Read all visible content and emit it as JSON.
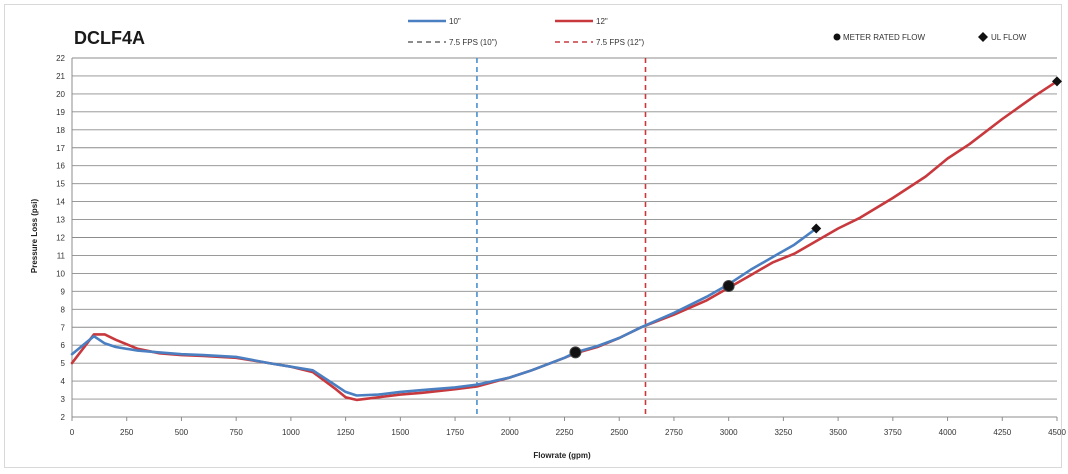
{
  "chart_data": {
    "type": "line",
    "title": "DCLF4A",
    "xlabel": "Flowrate (gpm)",
    "ylabel": "Pressure Loss (psi)",
    "xlim": [
      0,
      4500
    ],
    "ylim": [
      2,
      22
    ],
    "x_ticks": [
      "0",
      "250",
      "500",
      "750",
      "1000",
      "1250",
      "1500",
      "1750",
      "2000",
      "2250",
      "2500",
      "2750",
      "3000",
      "3250",
      "3500",
      "3750",
      "4000",
      "4250",
      "4500"
    ],
    "y_ticks": [
      "2",
      "3",
      "4",
      "5",
      "6",
      "7",
      "8",
      "9",
      "10",
      "11",
      "12",
      "13",
      "14",
      "15",
      "16",
      "17",
      "18",
      "19",
      "20",
      "21",
      "22"
    ],
    "grid": true,
    "series": [
      {
        "name": "10\"",
        "color": "#4a7fc1",
        "style": "solid",
        "points": [
          [
            0,
            5.5
          ],
          [
            50,
            6.0
          ],
          [
            100,
            6.5
          ],
          [
            150,
            6.1
          ],
          [
            200,
            5.9
          ],
          [
            300,
            5.7
          ],
          [
            400,
            5.6
          ],
          [
            500,
            5.5
          ],
          [
            600,
            5.45
          ],
          [
            750,
            5.35
          ],
          [
            900,
            5.0
          ],
          [
            1000,
            4.8
          ],
          [
            1100,
            4.6
          ],
          [
            1200,
            3.8
          ],
          [
            1250,
            3.4
          ],
          [
            1300,
            3.2
          ],
          [
            1400,
            3.25
          ],
          [
            1500,
            3.4
          ],
          [
            1600,
            3.5
          ],
          [
            1750,
            3.65
          ],
          [
            1850,
            3.8
          ],
          [
            2000,
            4.2
          ],
          [
            2100,
            4.6
          ],
          [
            2250,
            5.3
          ],
          [
            2300,
            5.6
          ],
          [
            2400,
            5.95
          ],
          [
            2500,
            6.4
          ],
          [
            2600,
            7.0
          ],
          [
            2750,
            7.8
          ],
          [
            2900,
            8.7
          ],
          [
            3000,
            9.4
          ],
          [
            3100,
            10.2
          ],
          [
            3200,
            10.9
          ],
          [
            3300,
            11.6
          ],
          [
            3400,
            12.5
          ]
        ]
      },
      {
        "name": "12\"",
        "color": "#c8393e",
        "style": "solid",
        "points": [
          [
            0,
            5.0
          ],
          [
            50,
            5.8
          ],
          [
            100,
            6.6
          ],
          [
            150,
            6.6
          ],
          [
            200,
            6.3
          ],
          [
            300,
            5.8
          ],
          [
            400,
            5.55
          ],
          [
            500,
            5.45
          ],
          [
            600,
            5.4
          ],
          [
            750,
            5.3
          ],
          [
            900,
            5.0
          ],
          [
            1000,
            4.8
          ],
          [
            1100,
            4.5
          ],
          [
            1200,
            3.6
          ],
          [
            1250,
            3.1
          ],
          [
            1300,
            2.95
          ],
          [
            1400,
            3.1
          ],
          [
            1500,
            3.25
          ],
          [
            1600,
            3.35
          ],
          [
            1750,
            3.55
          ],
          [
            1850,
            3.7
          ],
          [
            2000,
            4.2
          ],
          [
            2100,
            4.6
          ],
          [
            2250,
            5.3
          ],
          [
            2300,
            5.55
          ],
          [
            2400,
            5.9
          ],
          [
            2500,
            6.4
          ],
          [
            2600,
            7.0
          ],
          [
            2750,
            7.7
          ],
          [
            2900,
            8.5
          ],
          [
            3000,
            9.2
          ],
          [
            3100,
            9.9
          ],
          [
            3200,
            10.6
          ],
          [
            3300,
            11.1
          ],
          [
            3400,
            11.8
          ],
          [
            3500,
            12.5
          ],
          [
            3600,
            13.1
          ],
          [
            3750,
            14.2
          ],
          [
            3900,
            15.4
          ],
          [
            4000,
            16.4
          ],
          [
            4100,
            17.2
          ],
          [
            4250,
            18.6
          ],
          [
            4400,
            19.9
          ],
          [
            4500,
            20.7
          ]
        ]
      }
    ],
    "reference_lines": [
      {
        "name": "7.5 FPS (10\")",
        "x": 1850,
        "color": "#4a8fd0",
        "style": "dashed"
      },
      {
        "name": "7.5 FPS (12\")",
        "x": 2620,
        "color": "#c8393e",
        "style": "dashed"
      }
    ],
    "markers": [
      {
        "name": "METER RATED FLOW",
        "shape": "circle",
        "points": [
          [
            2300,
            5.6
          ],
          [
            3000,
            9.3
          ]
        ]
      },
      {
        "name": "UL FLOW",
        "shape": "diamond",
        "points": [
          [
            3400,
            12.5
          ],
          [
            4500,
            20.7
          ]
        ]
      }
    ]
  }
}
